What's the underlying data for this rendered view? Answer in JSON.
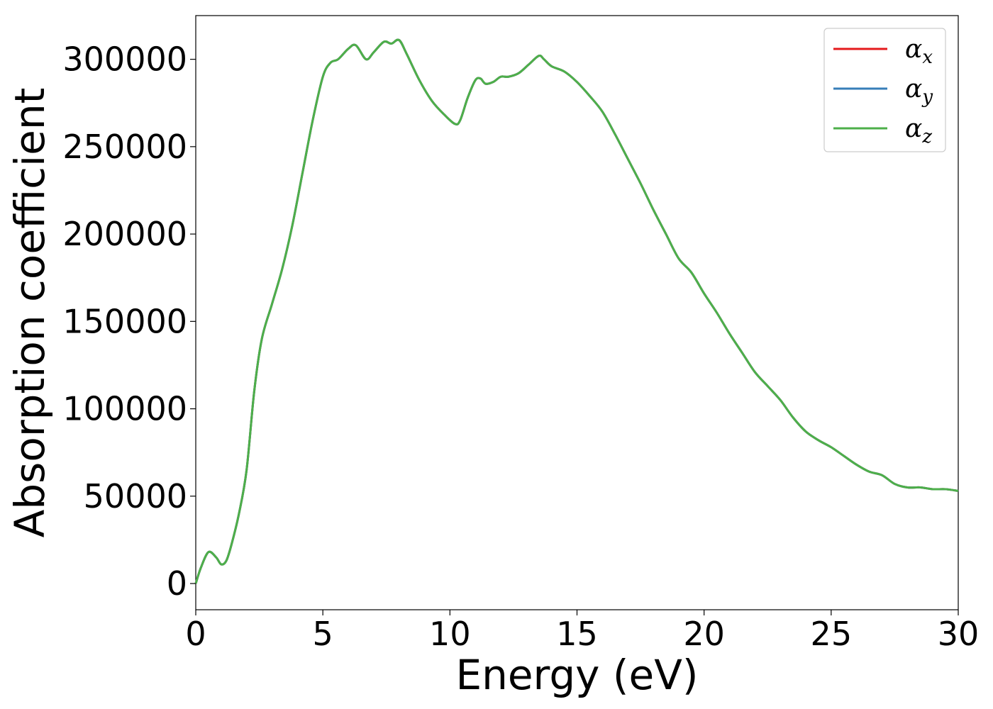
{
  "chart_data": {
    "type": "line",
    "xlabel": "Energy (eV)",
    "ylabel": "Absorption coefficient",
    "xlim": [
      0,
      30
    ],
    "ylim": [
      -15000,
      325000
    ],
    "xticks": [
      0,
      5,
      10,
      15,
      20,
      25,
      30
    ],
    "yticks": [
      0,
      50000,
      100000,
      150000,
      200000,
      250000,
      300000
    ],
    "grid": false,
    "legend_position": "top-right",
    "x": [
      0,
      0.2,
      0.5,
      0.8,
      1.0,
      1.2,
      1.4,
      1.7,
      2.0,
      2.3,
      2.6,
      3.0,
      3.4,
      3.8,
      4.2,
      4.6,
      5.0,
      5.3,
      5.6,
      6.0,
      6.3,
      6.7,
      7.0,
      7.4,
      7.7,
      8.0,
      8.3,
      8.8,
      9.3,
      9.8,
      10.2,
      10.4,
      10.7,
      11.0,
      11.2,
      11.4,
      11.7,
      12.0,
      12.3,
      12.7,
      13.1,
      13.5,
      13.7,
      14.0,
      14.5,
      15.0,
      15.5,
      16.0,
      16.5,
      17.0,
      17.5,
      18.0,
      18.5,
      19.0,
      19.5,
      20.0,
      20.5,
      21.0,
      21.5,
      22.0,
      22.5,
      23.0,
      23.5,
      24.0,
      24.5,
      25.0,
      25.5,
      26.0,
      26.5,
      27.0,
      27.5,
      28.0,
      28.5,
      29.0,
      29.5,
      30.0
    ],
    "series": [
      {
        "name": "α",
        "sub": "x",
        "color": "#e41a1c",
        "y": [
          0,
          9000,
          18000,
          15000,
          11000,
          13000,
          22000,
          40000,
          65000,
          110000,
          140000,
          160000,
          180000,
          205000,
          235000,
          265000,
          290000,
          298000,
          300000,
          306000,
          308000,
          300000,
          304000,
          310000,
          309000,
          311000,
          303000,
          288000,
          276000,
          268000,
          263000,
          265000,
          278000,
          288000,
          289000,
          286000,
          287000,
          290000,
          290000,
          292000,
          297000,
          302000,
          300000,
          296000,
          293000,
          287000,
          279000,
          270000,
          257000,
          243000,
          229000,
          214000,
          200000,
          186000,
          178000,
          166000,
          155000,
          143000,
          132000,
          121000,
          113000,
          105000,
          95000,
          87000,
          82000,
          78000,
          73000,
          68000,
          64000,
          62000,
          57000,
          55000,
          55000,
          54000,
          54000,
          53000
        ]
      },
      {
        "name": "α",
        "sub": "y",
        "color": "#377eb8",
        "y": [
          0,
          9000,
          18000,
          15000,
          11000,
          13000,
          22000,
          40000,
          65000,
          110000,
          140000,
          160000,
          180000,
          205000,
          235000,
          265000,
          290000,
          298000,
          300000,
          306000,
          308000,
          300000,
          304000,
          310000,
          309000,
          311000,
          303000,
          288000,
          276000,
          268000,
          263000,
          265000,
          278000,
          288000,
          289000,
          286000,
          287000,
          290000,
          290000,
          292000,
          297000,
          302000,
          300000,
          296000,
          293000,
          287000,
          279000,
          270000,
          257000,
          243000,
          229000,
          214000,
          200000,
          186000,
          178000,
          166000,
          155000,
          143000,
          132000,
          121000,
          113000,
          105000,
          95000,
          87000,
          82000,
          78000,
          73000,
          68000,
          64000,
          62000,
          57000,
          55000,
          55000,
          54000,
          54000,
          53000
        ]
      },
      {
        "name": "α",
        "sub": "z",
        "color": "#4daf4a",
        "y": [
          0,
          9000,
          18000,
          15000,
          11000,
          13000,
          22000,
          40000,
          65000,
          110000,
          140000,
          160000,
          180000,
          205000,
          235000,
          265000,
          290000,
          298000,
          300000,
          306000,
          308000,
          300000,
          304000,
          310000,
          309000,
          311000,
          303000,
          288000,
          276000,
          268000,
          263000,
          265000,
          278000,
          288000,
          289000,
          286000,
          287000,
          290000,
          290000,
          292000,
          297000,
          302000,
          300000,
          296000,
          293000,
          287000,
          279000,
          270000,
          257000,
          243000,
          229000,
          214000,
          200000,
          186000,
          178000,
          166000,
          155000,
          143000,
          132000,
          121000,
          113000,
          105000,
          95000,
          87000,
          82000,
          78000,
          73000,
          68000,
          64000,
          62000,
          57000,
          55000,
          55000,
          54000,
          54000,
          53000
        ]
      }
    ]
  }
}
